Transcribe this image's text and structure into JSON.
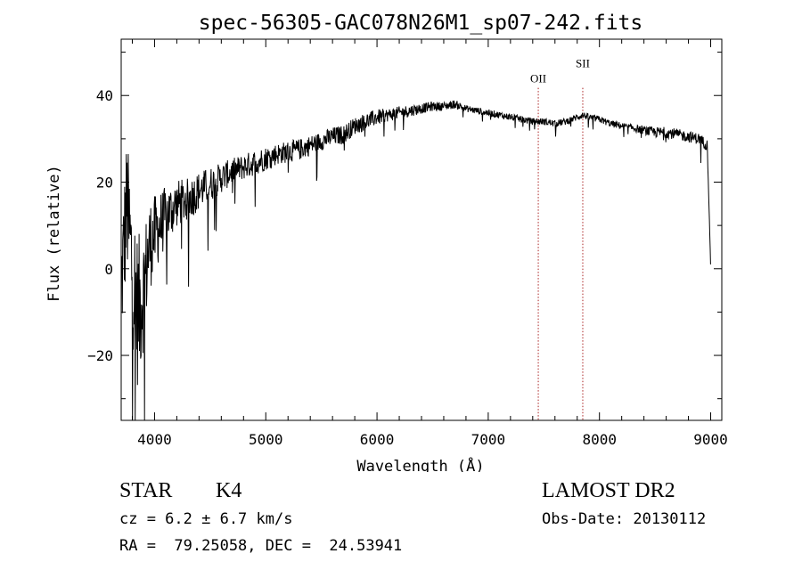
{
  "chart_data": {
    "type": "line",
    "title": "spec-56305-GAC078N26M1_sp07-242.fits",
    "xlabel": "Wavelength (Å)",
    "ylabel": "Flux (relative)",
    "xlim": [
      3700,
      9100
    ],
    "ylim": [
      -35,
      53
    ],
    "x_ticks": [
      4000,
      5000,
      6000,
      7000,
      8000,
      9000
    ],
    "y_ticks": [
      -20,
      0,
      20,
      40
    ],
    "x_tick_labels": [
      "4000",
      "5000",
      "6000",
      "7000",
      "8000",
      "9000"
    ],
    "y_tick_labels": [
      "−20",
      "0",
      "20",
      "40"
    ],
    "grid": false,
    "line_color": "#000000",
    "marker_color": "#aa2222",
    "series": [
      {
        "x": [
          3700,
          3750,
          3800,
          3850,
          3900,
          3950,
          4000,
          4100,
          4200,
          4300,
          4400,
          4500,
          4600,
          4700,
          4800,
          4900,
          5000,
          5100,
          5200,
          5300,
          5400,
          5500,
          5600,
          5700,
          5800,
          5900,
          6000,
          6100,
          6200,
          6300,
          6400,
          6500,
          6600,
          6700,
          6800,
          6900,
          7000,
          7100,
          7200,
          7300,
          7400,
          7500,
          7600,
          7700,
          7800,
          7850,
          7900,
          8000,
          8100,
          8200,
          8300,
          8400,
          8500,
          8600,
          8700,
          8800,
          8900,
          8970,
          8990,
          9000
        ],
        "y": [
          -5,
          15,
          0,
          -10,
          -5,
          5,
          8,
          12,
          15,
          16,
          18,
          19.5,
          21,
          22.5,
          23.5,
          24.5,
          25.5,
          26.5,
          27,
          27.5,
          28.5,
          29.5,
          30.5,
          31,
          33,
          34,
          35,
          35.5,
          36,
          36.5,
          37,
          37.5,
          37.5,
          38,
          37,
          36.5,
          36,
          35.5,
          35,
          34.5,
          34,
          34,
          33.5,
          34,
          35,
          35.5,
          35,
          34.5,
          33.5,
          33,
          32.5,
          32,
          31.5,
          31.5,
          31,
          30.5,
          30,
          28.5,
          10,
          0
        ],
        "noise": [
          14,
          16,
          17,
          18,
          14,
          11,
          9,
          7,
          5.5,
          5,
          4.5,
          4,
          3.5,
          3,
          3,
          3,
          2.8,
          2.5,
          2.5,
          2.5,
          2.3,
          2.2,
          2.2,
          2.2,
          2,
          2,
          1.8,
          1.5,
          1.5,
          1.4,
          1.2,
          1.1,
          1,
          1,
          0.8,
          0.8,
          0.8,
          0.8,
          0.8,
          0.8,
          0.8,
          0.8,
          0.8,
          0.8,
          0.8,
          0.8,
          0.8,
          0.8,
          0.8,
          0.8,
          0.8,
          1,
          1.2,
          1.3,
          1.3,
          1.3,
          1.3,
          1.3,
          0,
          0
        ]
      }
    ],
    "annotations": [
      {
        "text": "OII",
        "x": 7450,
        "y": 43
      },
      {
        "text": "SII",
        "x": 7850,
        "y": 46.5
      }
    ],
    "vlines": [
      7450,
      7850
    ]
  },
  "info": {
    "object_class": "STAR",
    "subclass": "K4",
    "survey": "LAMOST DR2",
    "redshift": "cz = 6.2 ± 6.7 km/s",
    "obs_date": "Obs-Date: 20130112",
    "coords": "RA =  79.25058, DEC =  24.53941"
  }
}
